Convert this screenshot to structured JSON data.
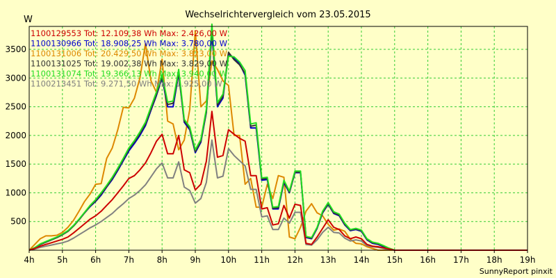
{
  "chart_data": {
    "type": "line",
    "title": "Wechselrichtervergleich vom 23.05.2015",
    "ylabel": "W",
    "xlabel": "",
    "credit": "SunnyReport pinxit",
    "ylim": [
      0,
      3900
    ],
    "xlim": [
      4,
      19
    ],
    "grid": true,
    "yticks": [
      500,
      1000,
      1500,
      2000,
      2500,
      3000,
      3500
    ],
    "xtick_labels": [
      "4h",
      "5h",
      "6h",
      "7h",
      "8h",
      "9h",
      "10h",
      "11h",
      "12h",
      "13h",
      "14h",
      "15h",
      "16h",
      "17h",
      "18h",
      "19h"
    ],
    "x": [
      4.0,
      4.167,
      4.333,
      4.5,
      4.667,
      4.833,
      5.0,
      5.167,
      5.333,
      5.5,
      5.667,
      5.833,
      6.0,
      6.167,
      6.333,
      6.5,
      6.667,
      6.833,
      7.0,
      7.167,
      7.333,
      7.5,
      7.667,
      7.833,
      8.0,
      8.167,
      8.333,
      8.5,
      8.667,
      8.833,
      9.0,
      9.167,
      9.333,
      9.5,
      9.667,
      9.833,
      10.0,
      10.167,
      10.333,
      10.5,
      10.667,
      10.833,
      11.0,
      11.167,
      11.333,
      11.5,
      11.667,
      11.833,
      12.0,
      12.167,
      12.333,
      12.5,
      12.667,
      12.833,
      13.0,
      13.167,
      13.333,
      13.5,
      13.667,
      13.833,
      14.0,
      14.167,
      14.333,
      14.5,
      14.667,
      14.833,
      15.0,
      15.167,
      15.333,
      15.5,
      15.667,
      15.833,
      16.0,
      16.167,
      16.333,
      16.5,
      16.667,
      16.833,
      17.0,
      17.167,
      17.333,
      17.5,
      17.667,
      17.833,
      18.0,
      18.167,
      18.333,
      18.5,
      18.667,
      18.833,
      19.0
    ],
    "series": [
      {
        "name": "1100129553",
        "label": "1100129553 Tot: 12.109,38 Wh Max: 2.426,00 W",
        "color": "#cc0000",
        "values": [
          0,
          30,
          70,
          100,
          130,
          160,
          190,
          230,
          300,
          380,
          460,
          540,
          600,
          680,
          780,
          880,
          1000,
          1120,
          1250,
          1300,
          1400,
          1520,
          1700,
          1900,
          2020,
          1680,
          1680,
          2000,
          1400,
          1350,
          1050,
          1150,
          1550,
          2420,
          1620,
          1650,
          2100,
          2020,
          1950,
          1900,
          1300,
          1300,
          720,
          740,
          440,
          460,
          780,
          560,
          800,
          780,
          120,
          100,
          230,
          380,
          530,
          400,
          360,
          250,
          200,
          230,
          200,
          100,
          70,
          60,
          40,
          20,
          0,
          0,
          0,
          0,
          0,
          0,
          0,
          0,
          0,
          0,
          0,
          0,
          0,
          0,
          0,
          0,
          0,
          0,
          0,
          0,
          0,
          0,
          0,
          0,
          0
        ]
      },
      {
        "name": "1100130966",
        "label": "1100130966 Tot: 18.908,25 Wh Max: 3.780,00 W",
        "color": "#0000cc",
        "values": [
          0,
          40,
          100,
          140,
          180,
          220,
          270,
          330,
          420,
          530,
          650,
          760,
          850,
          960,
          1100,
          1230,
          1390,
          1560,
          1730,
          1860,
          2000,
          2170,
          2440,
          2700,
          3000,
          2500,
          2500,
          3080,
          2230,
          2100,
          1700,
          1880,
          2400,
          3780,
          2500,
          2650,
          3420,
          3350,
          3250,
          3050,
          2130,
          2130,
          1220,
          1230,
          720,
          720,
          1180,
          1000,
          1350,
          1350,
          220,
          200,
          380,
          650,
          800,
          640,
          600,
          440,
          340,
          360,
          330,
          180,
          120,
          100,
          60,
          30,
          0,
          0,
          0,
          0,
          0,
          0,
          0,
          0,
          0,
          0,
          0,
          0,
          0,
          0,
          0,
          0,
          0,
          0,
          0,
          0,
          0,
          0,
          0,
          0,
          0
        ]
      },
      {
        "name": "1100131006",
        "label": "1100131006 Tot: 20.429,50 Wh Max: 3.823,00 W",
        "color": "#dd8800",
        "values": [
          0,
          100,
          200,
          250,
          250,
          260,
          310,
          400,
          520,
          680,
          850,
          980,
          1150,
          1160,
          1600,
          1780,
          2100,
          2490,
          2480,
          2650,
          3000,
          3600,
          2950,
          2750,
          3330,
          2250,
          2200,
          1750,
          1920,
          2450,
          3820,
          2500,
          2600,
          3300,
          3150,
          2950,
          2870,
          2000,
          2000,
          1150,
          1250,
          750,
          750,
          1150,
          900,
          1300,
          1270,
          230,
          200,
          400,
          680,
          810,
          650,
          600,
          450,
          350,
          370,
          330,
          190,
          120,
          110,
          60,
          30,
          0,
          0,
          0,
          0,
          0,
          0,
          0,
          0,
          0,
          0,
          0,
          0,
          0,
          0,
          0,
          0,
          0,
          0,
          0,
          0,
          0,
          0,
          0,
          0,
          0,
          0,
          0,
          0
        ]
      },
      {
        "name": "1100131025",
        "label": "1100131025 Tot: 19.002,38 Wh Max: 3.829,00 W",
        "color": "#333333",
        "values": [
          0,
          40,
          100,
          140,
          180,
          220,
          270,
          330,
          420,
          530,
          650,
          770,
          860,
          980,
          1110,
          1250,
          1410,
          1580,
          1760,
          1890,
          2030,
          2200,
          2460,
          2720,
          3020,
          2540,
          2560,
          3100,
          2250,
          2120,
          1720,
          1900,
          2420,
          3830,
          2530,
          2680,
          3450,
          3320,
          3230,
          3080,
          2160,
          2180,
          1240,
          1250,
          730,
          740,
          1200,
          1010,
          1360,
          1360,
          230,
          210,
          390,
          660,
          810,
          650,
          610,
          450,
          350,
          370,
          340,
          190,
          130,
          110,
          70,
          30,
          0,
          0,
          0,
          0,
          0,
          0,
          0,
          0,
          0,
          0,
          0,
          0,
          0,
          0,
          0,
          0,
          0,
          0,
          0,
          0,
          0,
          0,
          0,
          0,
          0
        ]
      },
      {
        "name": "1100131074",
        "label": "1100131074 Tot: 19.366,13 Wh Max: 3.940,00 W",
        "color": "#22dd22",
        "values": [
          0,
          45,
          110,
          150,
          190,
          230,
          280,
          340,
          430,
          540,
          660,
          780,
          880,
          1000,
          1130,
          1270,
          1430,
          1600,
          1780,
          1910,
          2060,
          2230,
          2500,
          2760,
          3060,
          2580,
          2600,
          3150,
          2280,
          2150,
          1750,
          1930,
          2460,
          3940,
          2570,
          2720,
          3380,
          3370,
          3280,
          3130,
          2200,
          2220,
          1260,
          1270,
          750,
          760,
          1220,
          1030,
          1380,
          1380,
          240,
          220,
          400,
          680,
          830,
          670,
          630,
          470,
          360,
          380,
          350,
          200,
          140,
          120,
          80,
          35,
          0,
          0,
          0,
          0,
          0,
          0,
          0,
          0,
          0,
          0,
          0,
          0,
          0,
          0,
          0,
          0,
          0,
          0,
          0,
          0,
          0,
          0,
          0,
          0,
          0
        ]
      },
      {
        "name": "1100213451",
        "label": "1100213451 Tot: 9.271,50 Wh Max: 1.925,00 W",
        "color": "#808080",
        "values": [
          0,
          20,
          50,
          70,
          90,
          110,
          130,
          160,
          210,
          270,
          330,
          390,
          440,
          500,
          570,
          640,
          730,
          810,
          900,
          960,
          1040,
          1140,
          1280,
          1420,
          1520,
          1260,
          1260,
          1540,
          1100,
          1040,
          820,
          900,
          1180,
          1920,
          1260,
          1290,
          1770,
          1650,
          1560,
          1470,
          1060,
          1060,
          580,
          600,
          360,
          360,
          560,
          470,
          660,
          660,
          100,
          90,
          180,
          310,
          400,
          310,
          300,
          210,
          160,
          180,
          160,
          80,
          60,
          50,
          30,
          10,
          0,
          0,
          0,
          0,
          0,
          0,
          0,
          0,
          0,
          0,
          0,
          0,
          0,
          0,
          0,
          0,
          0,
          0,
          0,
          0,
          0,
          0,
          0,
          0,
          0
        ]
      }
    ]
  }
}
